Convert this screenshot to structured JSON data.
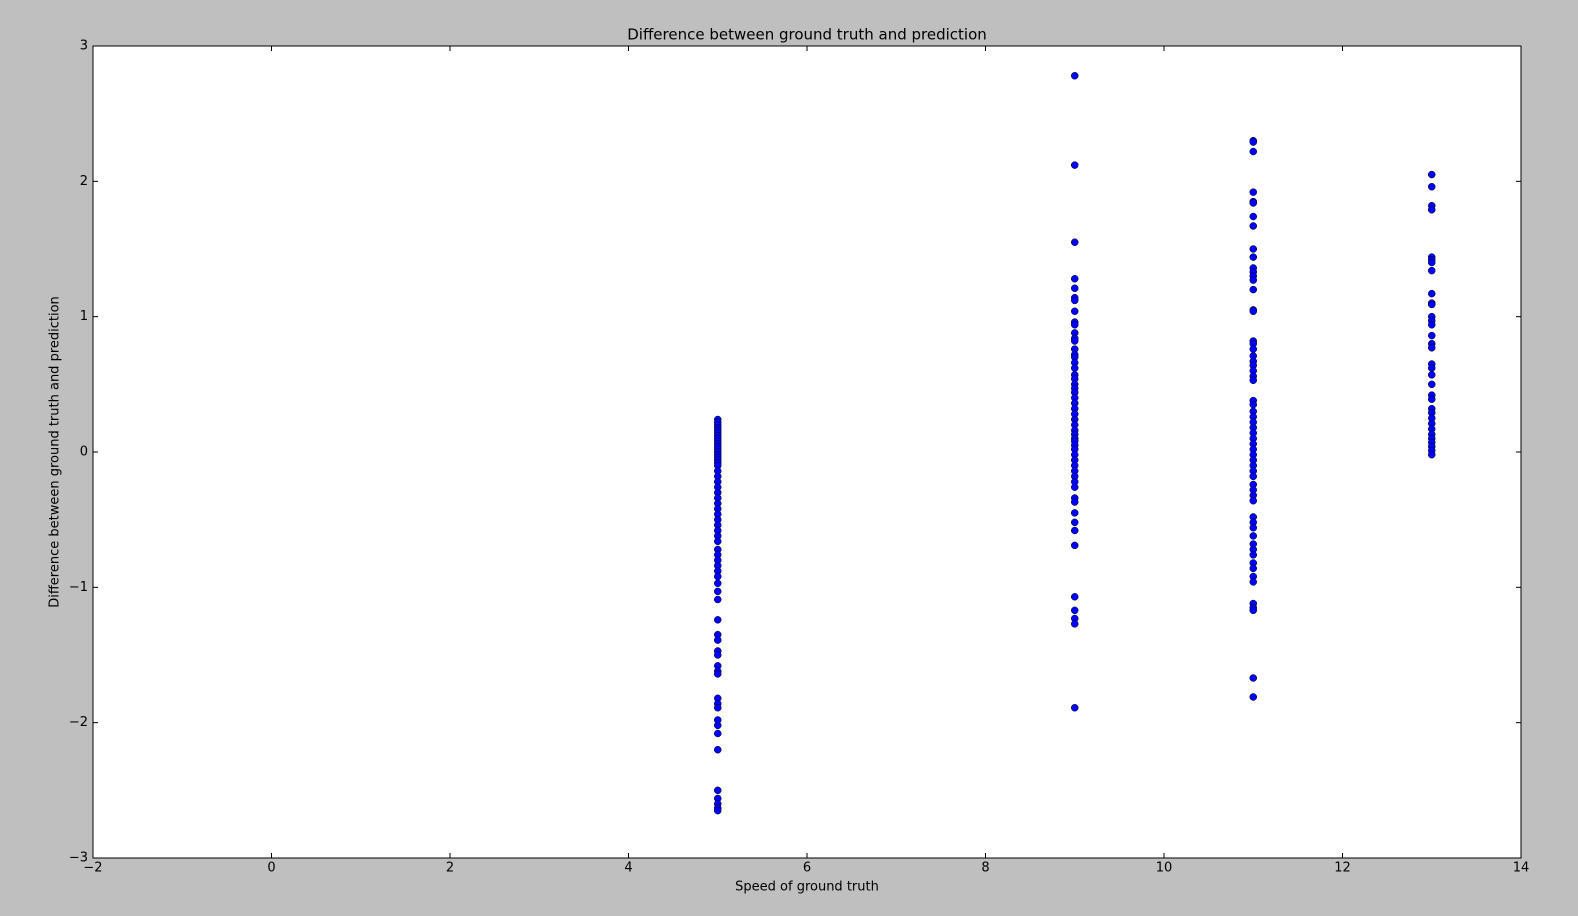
{
  "chart_data": {
    "type": "scatter",
    "title": "Difference between ground truth and prediction",
    "x_label": "Speed of ground truth",
    "y_label": "Difference between ground truth and prediction",
    "color": "#0000ff",
    "xlim": [
      -2,
      14
    ],
    "ylim": [
      -3,
      3
    ],
    "xticks": [
      {
        "value": -2,
        "label": "−2"
      },
      0,
      2,
      4,
      6,
      8,
      10,
      12,
      14
    ],
    "yticks": [
      {
        "value": -3,
        "label": "−3"
      },
      {
        "value": -2,
        "label": "−2"
      },
      {
        "value": -1,
        "label": "−1"
      },
      0,
      1,
      2,
      3
    ],
    "x": [
      5,
      5,
      5,
      5,
      5,
      5,
      5,
      5,
      5,
      5,
      5,
      5,
      5,
      5,
      5,
      5,
      5,
      5,
      5,
      5,
      5,
      5,
      5,
      5,
      5,
      5,
      5,
      5,
      5,
      5,
      5,
      5,
      5,
      5,
      5,
      5,
      5,
      5,
      5,
      5,
      5,
      5,
      5,
      5,
      5,
      5,
      5,
      5,
      5,
      5,
      5,
      5,
      5,
      5,
      5,
      5,
      5,
      5,
      5,
      5,
      5,
      9,
      9,
      9,
      9,
      9,
      9,
      9,
      9,
      9,
      9,
      9,
      9,
      9,
      9,
      9,
      9,
      9,
      9,
      9,
      9,
      9,
      9,
      9,
      9,
      9,
      9,
      9,
      9,
      9,
      9,
      9,
      9,
      9,
      9,
      9,
      9,
      9,
      9,
      9,
      9,
      9,
      9,
      9,
      9,
      9,
      9,
      9,
      9,
      9,
      9,
      9,
      9,
      9,
      11,
      11,
      11,
      11,
      11,
      11,
      11,
      11,
      11,
      11,
      11,
      11,
      11,
      11,
      11,
      11,
      11,
      11,
      11,
      11,
      11,
      11,
      11,
      11,
      11,
      11,
      11,
      11,
      11,
      11,
      11,
      11,
      11,
      11,
      11,
      11,
      11,
      11,
      11,
      11,
      11,
      11,
      11,
      11,
      11,
      11,
      11,
      11,
      11,
      11,
      11,
      11,
      11,
      11,
      11,
      11,
      11,
      11,
      11,
      11,
      11,
      13,
      13,
      13,
      13,
      13,
      13,
      13,
      13,
      13,
      13,
      13,
      13,
      13,
      13,
      13,
      13,
      13,
      13,
      13,
      13,
      13,
      13,
      13,
      13,
      13,
      13,
      13,
      13,
      13,
      13,
      13,
      13,
      13,
      13
    ],
    "values": [
      0.24,
      0.22,
      0.2,
      0.18,
      0.16,
      0.14,
      0.12,
      0.1,
      0.08,
      0.06,
      0.04,
      0.02,
      0,
      -0.02,
      -0.04,
      -0.06,
      -0.08,
      -0.1,
      -0.14,
      -0.18,
      -0.22,
      -0.26,
      -0.3,
      -0.34,
      -0.38,
      -0.42,
      -0.46,
      -0.5,
      -0.54,
      -0.58,
      -0.62,
      -0.66,
      -0.72,
      -0.76,
      -0.8,
      -0.84,
      -0.88,
      -0.92,
      -0.97,
      -1.03,
      -1.09,
      -1.24,
      -1.35,
      -1.39,
      -1.47,
      -1.5,
      -1.58,
      -1.62,
      -1.64,
      -1.82,
      -1.86,
      -1.89,
      -1.98,
      -2.02,
      -2.08,
      -2.2,
      -2.5,
      -2.56,
      -2.6,
      -2.63,
      -2.65,
      2.78,
      2.12,
      1.55,
      1.28,
      1.21,
      1.14,
      1.12,
      1.04,
      0.96,
      0.94,
      0.88,
      0.84,
      0.82,
      0.76,
      0.72,
      0.7,
      0.66,
      0.62,
      0.57,
      0.54,
      0.5,
      0.47,
      0.44,
      0.4,
      0.36,
      0.32,
      0.28,
      0.24,
      0.2,
      0.16,
      0.13,
      0.1,
      0.08,
      0.05,
      0.02,
      -0.02,
      -0.06,
      -0.1,
      -0.14,
      -0.18,
      -0.22,
      -0.26,
      -0.34,
      -0.37,
      -0.45,
      -0.52,
      -0.58,
      -0.69,
      -1.07,
      -1.17,
      -1.23,
      -1.27,
      -1.89,
      2.3,
      2.29,
      2.22,
      1.92,
      1.85,
      1.84,
      1.74,
      1.67,
      1.5,
      1.44,
      1.36,
      1.33,
      1.3,
      1.27,
      1.2,
      1.05,
      1.04,
      0.82,
      0.8,
      0.76,
      0.71,
      0.67,
      0.64,
      0.6,
      0.56,
      0.53,
      0.38,
      0.35,
      0.3,
      0.26,
      0.22,
      0.18,
      0.14,
      0.1,
      0.06,
      0.02,
      -0.02,
      -0.06,
      -0.1,
      -0.14,
      -0.18,
      -0.24,
      -0.28,
      -0.32,
      -0.36,
      -0.48,
      -0.52,
      -0.56,
      -0.62,
      -0.68,
      -0.72,
      -0.76,
      -0.82,
      -0.86,
      -0.92,
      -0.96,
      -1.12,
      -1.15,
      -1.17,
      -1.67,
      -1.81,
      2.05,
      1.96,
      1.82,
      1.79,
      1.44,
      1.42,
      1.4,
      1.34,
      1.17,
      1.1,
      1.09,
      1.0,
      0.97,
      0.94,
      0.86,
      0.8,
      0.77,
      0.65,
      0.62,
      0.57,
      0.5,
      0.42,
      0.39,
      0.32,
      0.29,
      0.25,
      0.21,
      0.17,
      0.13,
      0.1,
      0.07,
      0.04,
      0.01,
      -0.02
    ]
  }
}
